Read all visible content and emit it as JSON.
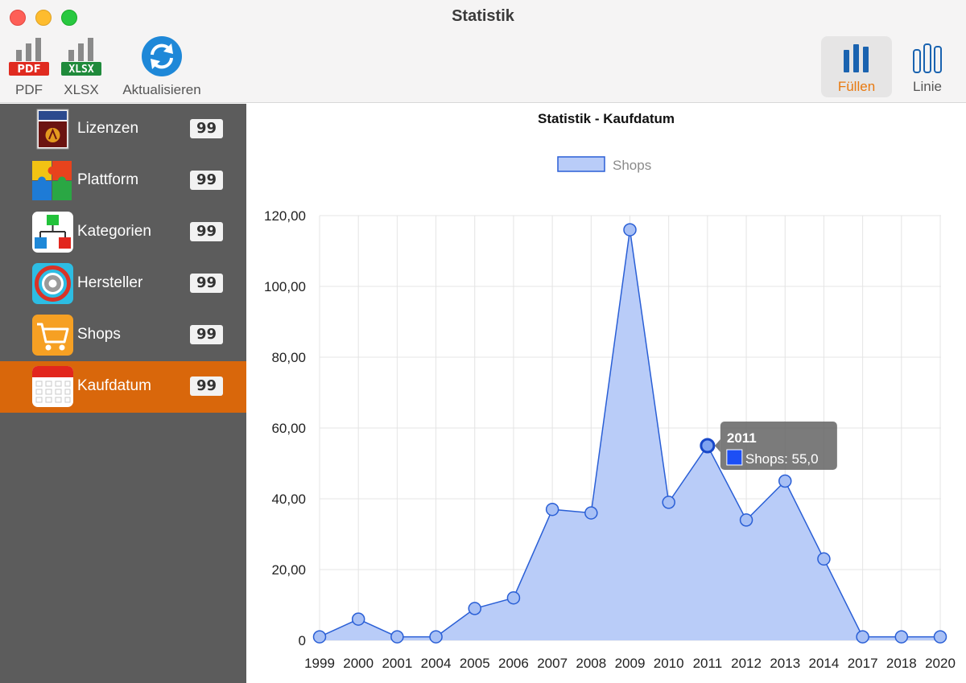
{
  "window": {
    "title": "Statistik"
  },
  "toolbar": {
    "pdf": {
      "label": "PDF",
      "badge": "PDF"
    },
    "xlsx": {
      "label": "XLSX",
      "badge": "XLSX"
    },
    "refresh": {
      "label": "Aktualisieren"
    },
    "fill": {
      "label": "Füllen"
    },
    "line": {
      "label": "Linie"
    }
  },
  "sidebar": {
    "items": [
      {
        "label": "Lizenzen",
        "count": "99",
        "icon": "license-manager-icon"
      },
      {
        "label": "Plattform",
        "count": "99",
        "icon": "puzzle-icon"
      },
      {
        "label": "Kategorien",
        "count": "99",
        "icon": "hierarchy-icon"
      },
      {
        "label": "Hersteller",
        "count": "99",
        "icon": "gear-icon"
      },
      {
        "label": "Shops",
        "count": "99",
        "icon": "cart-icon"
      },
      {
        "label": "Kaufdatum",
        "count": "99",
        "icon": "calendar-icon",
        "active": true
      }
    ]
  },
  "colors": {
    "accent": "#d9670b",
    "series_fill": "#b9ccf8",
    "series_line": "#2a5fd6"
  },
  "chart_data": {
    "type": "area",
    "title": "Statistik - Kaufdatum",
    "categories": [
      "1999",
      "2000",
      "2001",
      "2004",
      "2005",
      "2006",
      "2007",
      "2008",
      "2009",
      "2010",
      "2011",
      "2012",
      "2013",
      "2014",
      "2017",
      "2018",
      "2020"
    ],
    "series": [
      {
        "name": "Shops",
        "values": [
          1,
          6,
          1,
          1,
          9,
          12,
          37,
          36,
          116,
          39,
          55,
          34,
          45,
          23,
          1,
          1,
          1
        ]
      }
    ],
    "ylim": [
      0,
      120
    ],
    "yticks": [
      "0",
      "20,00",
      "40,00",
      "60,00",
      "80,00",
      "100,00",
      "120,00"
    ],
    "grid": true,
    "legend": "top-center",
    "tooltip": {
      "title": "2011",
      "text": "Shops: 55,0",
      "index": 10
    }
  }
}
